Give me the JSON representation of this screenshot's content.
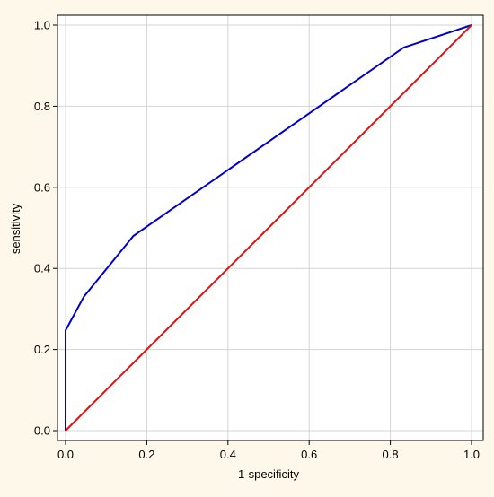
{
  "chart_data": {
    "type": "line",
    "title": "",
    "xlabel": "1-specificity",
    "ylabel": "sensitivity",
    "xlim": [
      0,
      1
    ],
    "ylim": [
      0,
      1
    ],
    "x_ticks": [
      "0.0",
      "0.2",
      "0.4",
      "0.6",
      "0.8",
      "1.0"
    ],
    "y_ticks": [
      "0.0",
      "0.2",
      "0.4",
      "0.6",
      "0.8",
      "1.0"
    ],
    "grid": true,
    "legend": "none",
    "series": [
      {
        "color": "#0000cc",
        "x": [
          0,
          0,
          0.045,
          0.167,
          0.833,
          1.0
        ],
        "y": [
          0,
          0.247,
          0.33,
          0.48,
          0.945,
          1.0
        ]
      },
      {
        "color": "#e01010",
        "x": [
          0,
          1
        ],
        "y": [
          0,
          1
        ]
      }
    ]
  }
}
